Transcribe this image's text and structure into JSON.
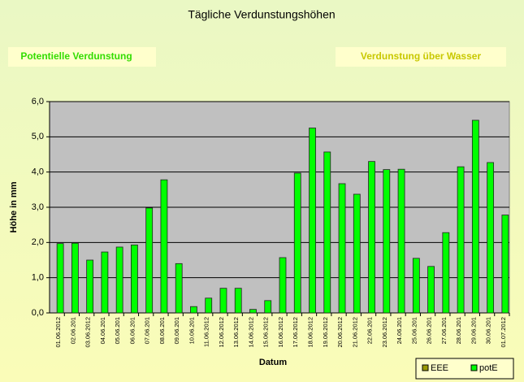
{
  "chart_data": {
    "type": "bar",
    "title": "Tägliche Verdunstungshöhen",
    "annotations": [
      "Potentielle Verdunstung",
      "Verdunstung über Wasser"
    ],
    "x_label": "Datum",
    "y_label": "Höhe in mm",
    "categories": [
      "01.06.2012",
      "02.06.201",
      "03.06.2012",
      "04.06.201",
      "05.06.201",
      "06.06.201",
      "07.06.201",
      "08.06.201",
      "09.06.201",
      "10.06.201",
      "11.06.2012",
      "12.06.2012",
      "13.06.2012",
      "14.06.2012",
      "15.06.2012",
      "16.06.2012",
      "17.06.2012",
      "18.06.2012",
      "19.06.2012",
      "20.06.2012",
      "21.06.2012",
      "22.06.201",
      "23.06.2012",
      "24.06.201",
      "25.06.201",
      "26.06.201",
      "27.06.201",
      "28.06.201",
      "29.06.201",
      "30.06.201",
      "01.07.2012"
    ],
    "series": [
      {
        "name": "EEE",
        "color": "#999900",
        "values": [
          null,
          null,
          null,
          null,
          null,
          null,
          null,
          null,
          null,
          null,
          null,
          null,
          null,
          null,
          null,
          null,
          null,
          null,
          null,
          null,
          null,
          null,
          null,
          null,
          null,
          null,
          null,
          null,
          null,
          null,
          null
        ]
      },
      {
        "name": "potE",
        "color": "#00ff00",
        "values": [
          1.97,
          1.98,
          1.5,
          1.73,
          1.87,
          1.93,
          2.98,
          3.78,
          1.4,
          0.18,
          0.42,
          0.7,
          0.7,
          0.1,
          0.35,
          1.57,
          3.97,
          5.25,
          4.57,
          3.67,
          3.37,
          4.3,
          4.07,
          4.08,
          1.55,
          1.32,
          2.28,
          4.15,
          5.47,
          4.27,
          2.78
        ]
      }
    ],
    "ylim": [
      0,
      6
    ],
    "yticks": [
      {
        "value": 0,
        "label": "0,0"
      },
      {
        "value": 1,
        "label": "1,0"
      },
      {
        "value": 2,
        "label": "2,0"
      },
      {
        "value": 3,
        "label": "3,0"
      },
      {
        "value": 4,
        "label": "4,0"
      },
      {
        "value": 5,
        "label": "5,0"
      },
      {
        "value": 6,
        "label": "6,0"
      }
    ],
    "grid": true,
    "legend": "bottom-right"
  }
}
